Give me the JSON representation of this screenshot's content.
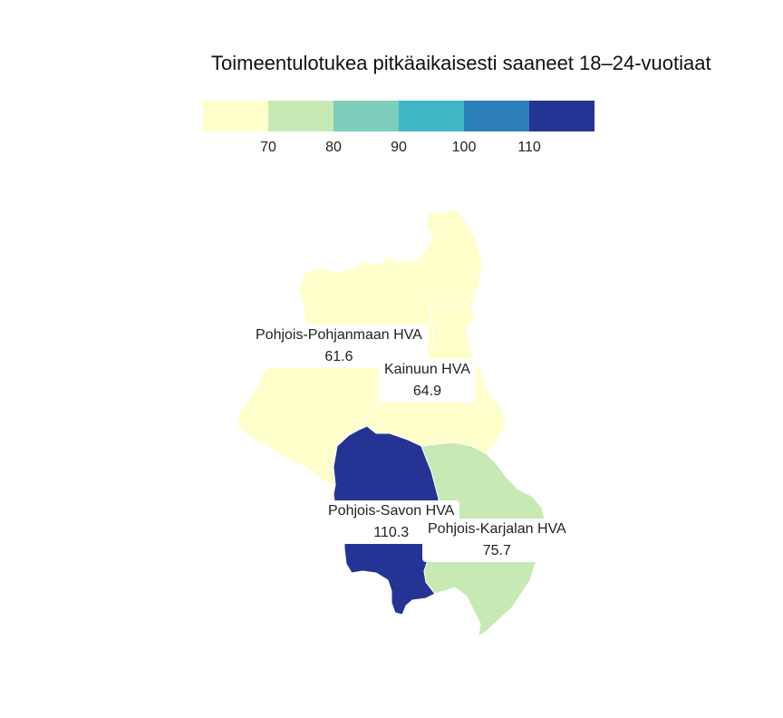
{
  "title": "Toimeentulotukea pitkäaikaisesti saaneet 18–24-vuotiaat",
  "legend": {
    "colors": [
      "#ffffcc",
      "#c7e9b4",
      "#7fcdbb",
      "#41b6c4",
      "#2c7fb8",
      "#253494"
    ],
    "ticks": [
      "70",
      "80",
      "90",
      "100",
      "110"
    ]
  },
  "regions": [
    {
      "name": "Pohjois-Pohjanmaan HVA",
      "value": "61.6",
      "color": "#ffffcc"
    },
    {
      "name": "Kainuun HVA",
      "value": "64.9",
      "color": "#ffffcc"
    },
    {
      "name": "Pohjois-Savon HVA",
      "value": "110.3",
      "color": "#253494"
    },
    {
      "name": "Pohjois-Karjalan HVA",
      "value": "75.7",
      "color": "#c7e9b4"
    }
  ]
}
